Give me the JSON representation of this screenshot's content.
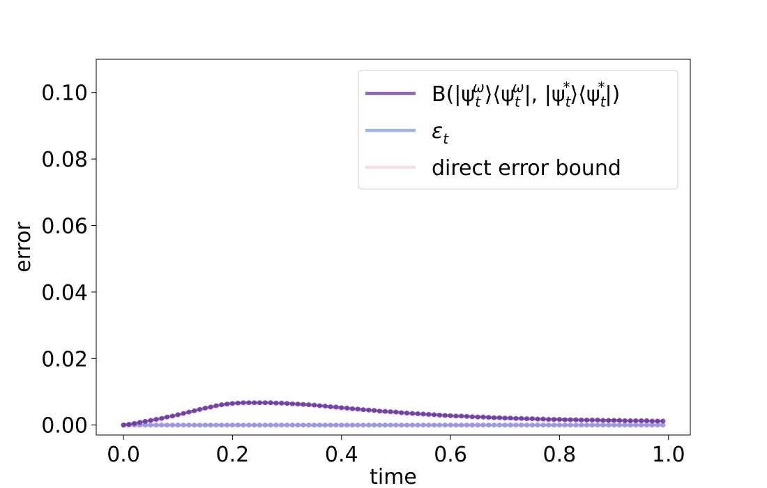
{
  "chart_data": {
    "type": "line",
    "title": "",
    "xlabel": "time",
    "ylabel": "error",
    "xlim": [
      -0.05,
      1.04
    ],
    "ylim": [
      -0.003,
      0.11
    ],
    "xticks": [
      0.0,
      0.2,
      0.4,
      0.6,
      0.8,
      1.0
    ],
    "xtick_labels": [
      "0.0",
      "0.2",
      "0.4",
      "0.6",
      "0.8",
      "1.0"
    ],
    "yticks": [
      0.0,
      0.02,
      0.04,
      0.06,
      0.08,
      0.1
    ],
    "ytick_labels": [
      "0.00",
      "0.02",
      "0.04",
      "0.06",
      "0.08",
      "0.10"
    ],
    "grid": false,
    "legend_position": "top-right",
    "legend": {
      "entries": [
        {
          "label_parts": [
            "B(|ψ",
            "t",
            "ω",
            "⟩⟨ψ",
            "t",
            "ω",
            "|, |ψ",
            "t",
            "*",
            "⟩⟨ψ",
            "t",
            "*",
            "|)"
          ],
          "color": "#7b4fb0"
        },
        {
          "label_parts": [
            "ε",
            "t"
          ],
          "color": "#8ea6ea"
        },
        {
          "label_parts": [
            "direct error bound"
          ],
          "color": "#f7d7e0"
        }
      ]
    },
    "x": [
      0.0,
      0.01,
      0.02,
      0.03,
      0.04,
      0.05,
      0.06,
      0.07,
      0.08,
      0.09,
      0.1,
      0.11,
      0.12,
      0.13,
      0.14,
      0.15,
      0.16,
      0.17,
      0.18,
      0.19,
      0.2,
      0.21,
      0.22,
      0.23,
      0.24,
      0.25,
      0.26,
      0.27,
      0.28,
      0.29,
      0.3,
      0.31,
      0.32,
      0.33,
      0.34,
      0.35,
      0.36,
      0.37,
      0.38,
      0.39,
      0.4,
      0.41,
      0.42,
      0.43,
      0.44,
      0.45,
      0.46,
      0.47,
      0.48,
      0.49,
      0.5,
      0.51,
      0.52,
      0.53,
      0.54,
      0.55,
      0.56,
      0.57,
      0.58,
      0.59,
      0.6,
      0.61,
      0.62,
      0.63,
      0.64,
      0.65,
      0.66,
      0.67,
      0.68,
      0.69,
      0.7,
      0.71,
      0.72,
      0.73,
      0.74,
      0.75,
      0.76,
      0.77,
      0.78,
      0.79,
      0.8,
      0.81,
      0.82,
      0.83,
      0.84,
      0.85,
      0.86,
      0.87,
      0.88,
      0.89,
      0.9,
      0.91,
      0.92,
      0.93,
      0.94,
      0.95,
      0.96,
      0.97,
      0.98,
      0.99
    ],
    "series": [
      {
        "name": "B(|ψtω⟩⟨ψtω|, |ψt*⟩⟨ψt*|)",
        "color": "#6a2fa0",
        "line_color": "#7b4fb0",
        "values": [
          0.0,
          0.0002,
          0.0005,
          0.0008,
          0.0011,
          0.0014,
          0.0017,
          0.002,
          0.0024,
          0.0027,
          0.0031,
          0.0035,
          0.0039,
          0.0043,
          0.0047,
          0.0051,
          0.0054,
          0.0058,
          0.0061,
          0.0063,
          0.0065,
          0.0066,
          0.0067,
          0.0067,
          0.0067,
          0.0067,
          0.0067,
          0.0067,
          0.0066,
          0.0066,
          0.0065,
          0.0064,
          0.0063,
          0.0062,
          0.0061,
          0.006,
          0.0058,
          0.0057,
          0.0055,
          0.0054,
          0.0052,
          0.0051,
          0.0049,
          0.0048,
          0.0046,
          0.0045,
          0.0044,
          0.0042,
          0.0041,
          0.004,
          0.0039,
          0.0037,
          0.0036,
          0.0035,
          0.0034,
          0.0033,
          0.0032,
          0.0031,
          0.003,
          0.0029,
          0.0028,
          0.0027,
          0.0027,
          0.0026,
          0.0025,
          0.0024,
          0.0024,
          0.0023,
          0.0022,
          0.0022,
          0.0021,
          0.0021,
          0.002,
          0.002,
          0.0019,
          0.0019,
          0.0018,
          0.0018,
          0.0017,
          0.0017,
          0.0017,
          0.0016,
          0.0016,
          0.0016,
          0.0015,
          0.0015,
          0.0015,
          0.0015,
          0.0014,
          0.0014,
          0.0014,
          0.0014,
          0.0013,
          0.0013,
          0.0013,
          0.0013,
          0.0013,
          0.0012,
          0.0012,
          0.0012
        ]
      },
      {
        "name": "εt",
        "color": "#9a90e0",
        "line_color": "#8ea6ea",
        "values": [
          0.0,
          0.0,
          0.0,
          0.0,
          0.0,
          0.0,
          0.0,
          0.0,
          0.0,
          0.0,
          0.0,
          0.0,
          0.0,
          0.0,
          0.0,
          0.0,
          0.0,
          0.0,
          0.0,
          0.0,
          0.0,
          0.0,
          0.0,
          0.0,
          0.0,
          0.0,
          0.0,
          0.0,
          0.0,
          0.0,
          0.0,
          0.0,
          0.0,
          0.0,
          0.0,
          0.0,
          0.0,
          0.0,
          0.0,
          0.0,
          0.0,
          0.0,
          0.0,
          0.0,
          0.0,
          0.0,
          0.0,
          0.0,
          0.0,
          0.0,
          0.0,
          0.0,
          0.0,
          0.0,
          0.0,
          0.0,
          0.0,
          0.0,
          0.0,
          0.0,
          0.0,
          0.0,
          0.0,
          0.0,
          0.0,
          0.0,
          0.0,
          0.0,
          0.0,
          0.0,
          0.0,
          0.0,
          0.0,
          0.0,
          0.0,
          0.0,
          0.0,
          0.0,
          0.0,
          0.0,
          0.0,
          0.0,
          0.0,
          0.0,
          0.0,
          0.0,
          0.0,
          0.0,
          0.0,
          0.0,
          0.0,
          0.0,
          0.0,
          0.0,
          0.0,
          0.0,
          0.0,
          0.0,
          0.0,
          0.0
        ]
      },
      {
        "name": "direct error bound",
        "color": "#f7d7e0",
        "line_color": "#f7d7e0",
        "values": [
          0.0,
          0.0,
          0.0,
          0.0,
          0.0,
          0.0,
          0.0,
          0.0,
          0.0,
          0.0,
          0.0,
          0.0,
          0.0,
          0.0,
          0.0,
          0.0,
          0.0,
          0.0,
          0.0,
          0.0,
          0.0,
          0.0,
          0.0,
          0.0,
          0.0,
          0.0,
          0.0,
          0.0,
          0.0,
          0.0,
          0.0,
          0.0,
          0.0,
          0.0,
          0.0,
          0.0,
          0.0,
          0.0,
          0.0,
          0.0,
          0.0,
          0.0,
          0.0,
          0.0,
          0.0,
          0.0,
          0.0,
          0.0,
          0.0,
          0.0,
          0.0,
          0.0,
          0.0,
          0.0,
          0.0,
          0.0,
          0.0,
          0.0,
          0.0,
          0.0,
          0.0,
          0.0,
          0.0,
          0.0,
          0.0,
          0.0,
          0.0,
          0.0,
          0.0,
          0.0,
          0.0,
          0.0,
          0.0,
          0.0,
          0.0,
          0.0,
          0.0,
          0.0,
          0.0,
          0.0,
          0.0,
          0.0,
          0.0,
          0.0,
          0.0,
          0.0,
          0.0,
          0.0,
          0.0,
          0.0,
          0.0,
          0.0,
          0.0,
          0.0,
          0.0,
          0.0,
          0.0,
          0.0,
          0.0,
          0.0
        ]
      }
    ]
  }
}
